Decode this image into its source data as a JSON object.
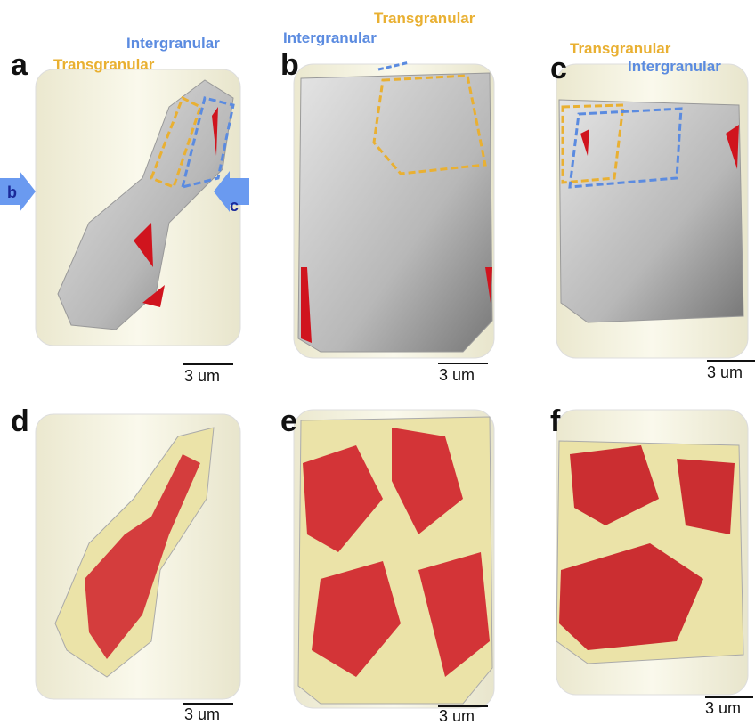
{
  "panels": [
    {
      "label": "a",
      "annotations": [
        "Transgranular",
        "Intergranular"
      ],
      "view_markers": [
        "b",
        "c"
      ],
      "scale_bar": "3 um"
    },
    {
      "label": "b",
      "annotations": [
        "Intergranular",
        "Transgranular"
      ],
      "scale_bar": "3 um"
    },
    {
      "label": "c",
      "annotations": [
        "Transgranular",
        "Intergranular"
      ],
      "scale_bar": "3 um"
    },
    {
      "label": "d",
      "scale_bar": "3 um"
    },
    {
      "label": "e",
      "scale_bar": "3 um"
    },
    {
      "label": "f",
      "scale_bar": "3 um"
    }
  ]
}
